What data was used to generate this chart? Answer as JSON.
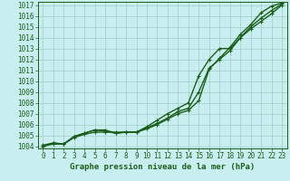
{
  "title": "Graphe pression niveau de la mer (hPa)",
  "bg_color": "#c8eef0",
  "grid_color": "#a0ccc8",
  "line_color": "#1a5e1a",
  "xlim": [
    -0.5,
    23.5
  ],
  "ylim": [
    1003.8,
    1017.3
  ],
  "xticks": [
    0,
    1,
    2,
    3,
    4,
    5,
    6,
    7,
    8,
    9,
    10,
    11,
    12,
    13,
    14,
    15,
    16,
    17,
    18,
    19,
    20,
    21,
    22,
    23
  ],
  "yticks": [
    1004,
    1005,
    1006,
    1007,
    1008,
    1009,
    1010,
    1011,
    1012,
    1013,
    1014,
    1015,
    1016,
    1017
  ],
  "series": [
    [
      1004.1,
      1004.3,
      1004.2,
      1004.8,
      1005.1,
      1005.3,
      1005.3,
      1005.3,
      1005.3,
      1005.3,
      1005.6,
      1006.0,
      1006.5,
      1007.0,
      1007.3,
      1008.2,
      1011.1,
      1012.1,
      1013.1,
      1014.3,
      1015.2,
      1016.3,
      1016.9,
      1017.2
    ],
    [
      1004.0,
      1004.3,
      1004.2,
      1004.9,
      1005.2,
      1005.5,
      1005.5,
      1005.2,
      1005.3,
      1005.3,
      1005.8,
      1006.4,
      1007.0,
      1007.5,
      1008.0,
      1010.5,
      1012.0,
      1013.0,
      1013.0,
      1014.0,
      1014.8,
      1015.5,
      1016.2,
      1017.0
    ],
    [
      1004.0,
      1004.2,
      1004.2,
      1004.9,
      1005.2,
      1005.5,
      1005.4,
      1005.2,
      1005.3,
      1005.3,
      1005.7,
      1006.1,
      1006.6,
      1007.2,
      1007.5,
      1009.0,
      1011.2,
      1012.0,
      1012.8,
      1014.0,
      1015.0,
      1015.8,
      1016.5,
      1017.1
    ]
  ],
  "tick_fontsize": 5.5,
  "label_fontsize": 6.5,
  "linewidths": [
    1.0,
    1.0,
    1.0
  ],
  "markersizes": [
    3.5,
    3.5,
    3.5
  ]
}
